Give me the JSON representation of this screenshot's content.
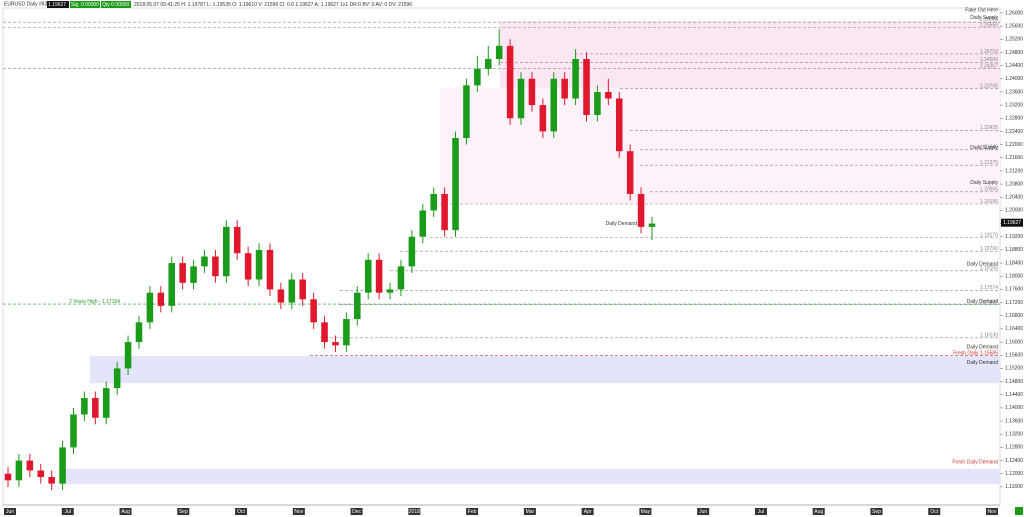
{
  "header": {
    "symbol": "EURUSD  Daily  #8390",
    "price_badge": "1.19627",
    "sig": "Sig. 0.00000",
    "qty": "Qty 0.00000",
    "info": "2018.05.07 05:41:25  H: 1.19787  L: 1.19535  O: 1.19610  V: 21596  Cl: 0.6  1.19627  A: 1.19627  1x1  DR:0  BV: 0  AV: 0  DV: 21596"
  },
  "chart_data": {
    "type": "candlestick",
    "up_color": "#1a9b1a",
    "down_color": "#e0182e",
    "ylim": [
      1.1105,
      1.2615
    ],
    "yticks": [
      {
        "value": 1.116,
        "label": "1.11600"
      },
      {
        "value": 1.12,
        "label": "1.12000"
      },
      {
        "value": 1.124,
        "label": "1.12400"
      },
      {
        "value": 1.128,
        "label": "1.12800"
      },
      {
        "value": 1.132,
        "label": "1.13200"
      },
      {
        "value": 1.136,
        "label": "1.13600"
      },
      {
        "value": 1.14,
        "label": "1.14000"
      },
      {
        "value": 1.144,
        "label": "1.14400"
      },
      {
        "value": 1.148,
        "label": "1.14800"
      },
      {
        "value": 1.152,
        "label": "1.15200"
      },
      {
        "value": 1.156,
        "label": "1.15600"
      },
      {
        "value": 1.16,
        "label": "1.16000"
      },
      {
        "value": 1.164,
        "label": "1.16400"
      },
      {
        "value": 1.168,
        "label": "1.16800"
      },
      {
        "value": 1.172,
        "label": "1.17200"
      },
      {
        "value": 1.176,
        "label": "1.17600"
      },
      {
        "value": 1.18,
        "label": "1.18000"
      },
      {
        "value": 1.184,
        "label": "1.18400"
      },
      {
        "value": 1.188,
        "label": "1.18800"
      },
      {
        "value": 1.192,
        "label": "1.19200"
      },
      {
        "value": 1.196,
        "label": "1.19600"
      },
      {
        "value": 1.2,
        "label": "1.20000"
      },
      {
        "value": 1.204,
        "label": "1.20400"
      },
      {
        "value": 1.208,
        "label": "1.20800"
      },
      {
        "value": 1.212,
        "label": "1.21200"
      },
      {
        "value": 1.216,
        "label": "1.21600"
      },
      {
        "value": 1.22,
        "label": "1.22000"
      },
      {
        "value": 1.224,
        "label": "1.22400"
      },
      {
        "value": 1.228,
        "label": "1.22800"
      },
      {
        "value": 1.232,
        "label": "1.23200"
      },
      {
        "value": 1.236,
        "label": "1.23600"
      },
      {
        "value": 1.24,
        "label": "1.24000"
      },
      {
        "value": 1.244,
        "label": "1.24400"
      },
      {
        "value": 1.248,
        "label": "1.24800"
      },
      {
        "value": 1.252,
        "label": "1.25200"
      },
      {
        "value": 1.256,
        "label": "1.25600"
      },
      {
        "value": 1.26,
        "label": "1.26000"
      }
    ],
    "months": [
      "Jun",
      "Jul",
      "Aug",
      "Sep",
      "Oct",
      "Nov",
      "Dec",
      "2018",
      "Feb",
      "Mar",
      "Apr",
      "May",
      "Jun",
      "Jul",
      "Aug",
      "Sep",
      "Oct",
      "Nov"
    ],
    "candles": [
      [
        1.12,
        1.122,
        1.116,
        1.118
      ],
      [
        1.118,
        1.126,
        1.116,
        1.124
      ],
      [
        1.124,
        1.126,
        1.119,
        1.121
      ],
      [
        1.121,
        1.123,
        1.117,
        1.119
      ],
      [
        1.119,
        1.121,
        1.115,
        1.117
      ],
      [
        1.117,
        1.13,
        1.115,
        1.128
      ],
      [
        1.128,
        1.14,
        1.126,
        1.138
      ],
      [
        1.138,
        1.145,
        1.136,
        1.143
      ],
      [
        1.143,
        1.145,
        1.135,
        1.137
      ],
      [
        1.137,
        1.148,
        1.135,
        1.146
      ],
      [
        1.146,
        1.154,
        1.144,
        1.152
      ],
      [
        1.152,
        1.162,
        1.15,
        1.16
      ],
      [
        1.16,
        1.168,
        1.158,
        1.166
      ],
      [
        1.166,
        1.177,
        1.164,
        1.175
      ],
      [
        1.175,
        1.177,
        1.169,
        1.171
      ],
      [
        1.171,
        1.186,
        1.169,
        1.184
      ],
      [
        1.184,
        1.186,
        1.176,
        1.178
      ],
      [
        1.178,
        1.185,
        1.176,
        1.183
      ],
      [
        1.183,
        1.188,
        1.181,
        1.186
      ],
      [
        1.186,
        1.188,
        1.178,
        1.18
      ],
      [
        1.18,
        1.197,
        1.178,
        1.195
      ],
      [
        1.195,
        1.197,
        1.185,
        1.187
      ],
      [
        1.187,
        1.189,
        1.177,
        1.179
      ],
      [
        1.179,
        1.19,
        1.177,
        1.188
      ],
      [
        1.188,
        1.19,
        1.174,
        1.176
      ],
      [
        1.176,
        1.178,
        1.17,
        1.172
      ],
      [
        1.172,
        1.181,
        1.17,
        1.179
      ],
      [
        1.179,
        1.181,
        1.171,
        1.173
      ],
      [
        1.173,
        1.175,
        1.164,
        1.166
      ],
      [
        1.166,
        1.168,
        1.158,
        1.16
      ],
      [
        1.16,
        1.162,
        1.157,
        1.159
      ],
      [
        1.159,
        1.169,
        1.157,
        1.167
      ],
      [
        1.167,
        1.177,
        1.165,
        1.175
      ],
      [
        1.175,
        1.187,
        1.173,
        1.185
      ],
      [
        1.185,
        1.187,
        1.173,
        1.175
      ],
      [
        1.175,
        1.178,
        1.173,
        1.176
      ],
      [
        1.176,
        1.185,
        1.174,
        1.183
      ],
      [
        1.183,
        1.194,
        1.181,
        1.192
      ],
      [
        1.192,
        1.202,
        1.19,
        1.2
      ],
      [
        1.2,
        1.207,
        1.198,
        1.205
      ],
      [
        1.205,
        1.207,
        1.192,
        1.194
      ],
      [
        1.194,
        1.224,
        1.192,
        1.222
      ],
      [
        1.222,
        1.24,
        1.22,
        1.238
      ],
      [
        1.238,
        1.247,
        1.236,
        1.243
      ],
      [
        1.243,
        1.25,
        1.241,
        1.246
      ],
      [
        1.246,
        1.255,
        1.244,
        1.25
      ],
      [
        1.25,
        1.252,
        1.226,
        1.228
      ],
      [
        1.228,
        1.242,
        1.226,
        1.24
      ],
      [
        1.24,
        1.242,
        1.23,
        1.232
      ],
      [
        1.232,
        1.234,
        1.222,
        1.224
      ],
      [
        1.224,
        1.242,
        1.222,
        1.24
      ],
      [
        1.24,
        1.242,
        1.232,
        1.234
      ],
      [
        1.234,
        1.249,
        1.232,
        1.246
      ],
      [
        1.246,
        1.248,
        1.227,
        1.229
      ],
      [
        1.229,
        1.238,
        1.227,
        1.236
      ],
      [
        1.236,
        1.24,
        1.232,
        1.234
      ],
      [
        1.234,
        1.236,
        1.216,
        1.218
      ],
      [
        1.218,
        1.22,
        1.203,
        1.205
      ],
      [
        1.205,
        1.207,
        1.193,
        1.195
      ],
      [
        1.195,
        1.198,
        1.191,
        1.196
      ]
    ],
    "current_price": {
      "value": 1.19627,
      "label": "1.19627"
    },
    "zones": [
      {
        "top": 1.2575,
        "bottom": 1.2372,
        "color": "#fbe6f4"
      },
      {
        "top": 1.2372,
        "bottom": 1.202,
        "color": "#fdf1fa"
      },
      {
        "top": 1.1558,
        "bottom": 1.1475,
        "color": "#e4e4fb"
      },
      {
        "top": 1.1215,
        "bottom": 1.1168,
        "color": "#e4e4fb"
      }
    ],
    "levels": [
      {
        "value": 1.2572,
        "label": "1.25720",
        "color": "#888"
      },
      {
        "value": 1.2555,
        "label": "1.25550",
        "color": "#888"
      },
      {
        "value": 1.24753,
        "label": "1.24753",
        "color": "#888"
      },
      {
        "value": 1.245,
        "label": "1.24500",
        "color": "#888"
      },
      {
        "value": 1.24307,
        "label": "1.24307",
        "color": "#888"
      },
      {
        "value": 1.23705,
        "label": "1.23705",
        "color": "#888"
      },
      {
        "value": 1.22435,
        "label": "1.22435",
        "color": "#888"
      },
      {
        "value": 1.2184,
        "label": "1.21840",
        "color": "#888"
      },
      {
        "value": 1.21375,
        "label": "1.21375",
        "color": "#888"
      },
      {
        "value": 1.20565,
        "label": "1.20565",
        "color": "#888"
      },
      {
        "value": 1.20195,
        "label": "1.20195",
        "color": "#888"
      },
      {
        "value": 1.1917,
        "label": "1.19170",
        "color": "#888"
      },
      {
        "value": 1.1876,
        "label": "1.18760",
        "color": "#888"
      },
      {
        "value": 1.18165,
        "label": "1.18165",
        "color": "#888"
      },
      {
        "value": 1.17574,
        "label": "1.17574",
        "color": "#888"
      },
      {
        "value": 1.17137,
        "label": "1.17137",
        "color": "#888"
      },
      {
        "value": 1.1613,
        "label": "1.16130",
        "color": "#888"
      },
      {
        "value": 1.15585,
        "label": "Fresh Daily 1.15585",
        "color": "#d03030"
      },
      {
        "value": 1.17154,
        "label": "2 Years High - 1.17154",
        "color": "#2a9a2a"
      }
    ],
    "annotations": [
      "Fake Out Here",
      "Daily Supply",
      "Daily Supply",
      "Daily Supply",
      "Daily Demand",
      "Daily Demand",
      "Daily Demand",
      "Daily Demand",
      "Daily Demand",
      "Fresh Daily Demand"
    ]
  }
}
